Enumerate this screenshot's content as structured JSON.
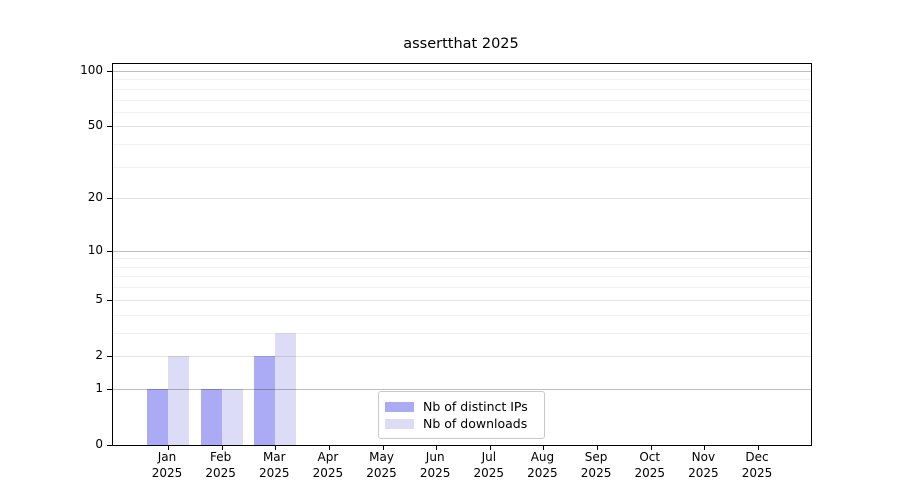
{
  "title": "assertthat 2025",
  "chart_data": {
    "type": "bar",
    "title": "assertthat 2025",
    "categories": [
      "Jan",
      "Feb",
      "Mar",
      "Apr",
      "May",
      "Jun",
      "Jul",
      "Aug",
      "Sep",
      "Oct",
      "Nov",
      "Dec"
    ],
    "year": "2025",
    "series": [
      {
        "name": "Nb of distinct IPs",
        "color": "#aaaaf5",
        "values": [
          1,
          1,
          2,
          0,
          0,
          0,
          0,
          0,
          0,
          0,
          0,
          0
        ]
      },
      {
        "name": "Nb of downloads",
        "color": "#dcdcf7",
        "values": [
          2,
          1,
          3,
          0,
          0,
          0,
          0,
          0,
          0,
          0,
          0,
          0
        ]
      }
    ],
    "xlabel": "",
    "ylabel": "",
    "y_axis": {
      "scale": "log10(1+v)",
      "tick_labels": [
        "100",
        "50",
        "20",
        "10",
        "5",
        "2",
        "1",
        "0"
      ],
      "tick_values": [
        100,
        50,
        20,
        10,
        5,
        2,
        1,
        0
      ],
      "decade_values": [
        1,
        10,
        100
      ],
      "minor_tick_values": [
        3,
        4,
        6,
        7,
        8,
        9,
        30,
        40,
        60,
        70,
        80,
        90
      ],
      "ylim": [
        0,
        110
      ]
    },
    "grid": "horizontal",
    "legend_position": "inside-bottom-center"
  },
  "legend": {
    "entries": [
      {
        "label": "Nb of distinct IPs",
        "color": "#aaaaf5"
      },
      {
        "label": "Nb of downloads",
        "color": "#dcdcf7"
      }
    ]
  },
  "colors": {
    "series_dark": "#aaaaf5",
    "series_light": "#dcdcf7",
    "axis": "#000000",
    "grid_decade": "#c0c0c0",
    "grid_major": "#e3e3e3",
    "grid_minor": "#f2f2f2",
    "background": "#ffffff"
  }
}
